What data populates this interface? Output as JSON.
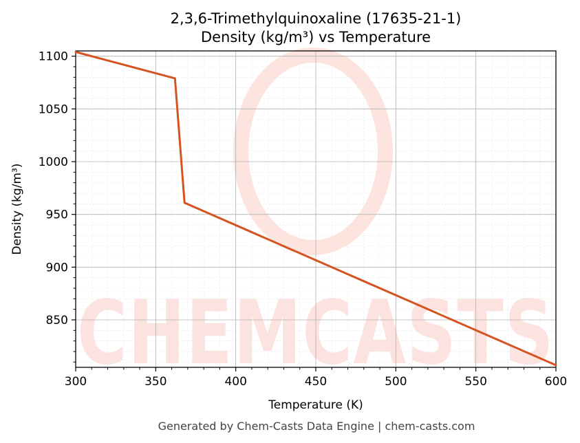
{
  "chart_data": {
    "type": "line",
    "title_line1": "2,3,6-Trimethylquinoxaline (17635-21-1)",
    "title_line2": "Density (kg/m³) vs Temperature",
    "xlabel": "Temperature (K)",
    "ylabel": "Density (kg/m³)",
    "xlim": [
      300,
      600
    ],
    "ylim": [
      805,
      1105
    ],
    "xticks": [
      300,
      350,
      400,
      450,
      500,
      550,
      600
    ],
    "yticks": [
      850,
      900,
      950,
      1000,
      1050,
      1100
    ],
    "grid": true,
    "series": [
      {
        "color": "#d4531f",
        "x": [
          300,
          362,
          368,
          600
        ],
        "y": [
          1104,
          1079,
          961,
          807
        ]
      }
    ]
  },
  "watermark": {
    "text": "CHEMCASTS"
  },
  "footer": {
    "text": "Generated by Chem-Casts Data Engine | chem-casts.com"
  }
}
